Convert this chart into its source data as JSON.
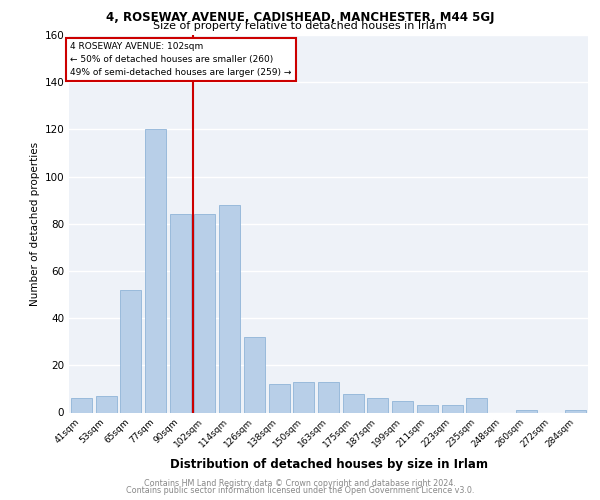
{
  "title1": "4, ROSEWAY AVENUE, CADISHEAD, MANCHESTER, M44 5GJ",
  "title2": "Size of property relative to detached houses in Irlam",
  "xlabel": "Distribution of detached houses by size in Irlam",
  "ylabel": "Number of detached properties",
  "categories": [
    "41sqm",
    "53sqm",
    "65sqm",
    "77sqm",
    "90sqm",
    "102sqm",
    "114sqm",
    "126sqm",
    "138sqm",
    "150sqm",
    "163sqm",
    "175sqm",
    "187sqm",
    "199sqm",
    "211sqm",
    "223sqm",
    "235sqm",
    "248sqm",
    "260sqm",
    "272sqm",
    "284sqm"
  ],
  "values": [
    6,
    7,
    52,
    120,
    84,
    84,
    88,
    32,
    12,
    13,
    13,
    8,
    6,
    5,
    3,
    3,
    6,
    0,
    1,
    0,
    1
  ],
  "bar_color": "#b8cfe8",
  "bar_edge_color": "#90b4d8",
  "marker_index": 5,
  "marker_label": "4 ROSEWAY AVENUE: 102sqm",
  "annotation_line1": "← 50% of detached houses are smaller (260)",
  "annotation_line2": "49% of semi-detached houses are larger (259) →",
  "marker_color": "#cc0000",
  "ylim": [
    0,
    160
  ],
  "yticks": [
    0,
    20,
    40,
    60,
    80,
    100,
    120,
    140,
    160
  ],
  "footnote1": "Contains HM Land Registry data © Crown copyright and database right 2024.",
  "footnote2": "Contains public sector information licensed under the Open Government Licence v3.0.",
  "bg_color": "#eef2f8"
}
